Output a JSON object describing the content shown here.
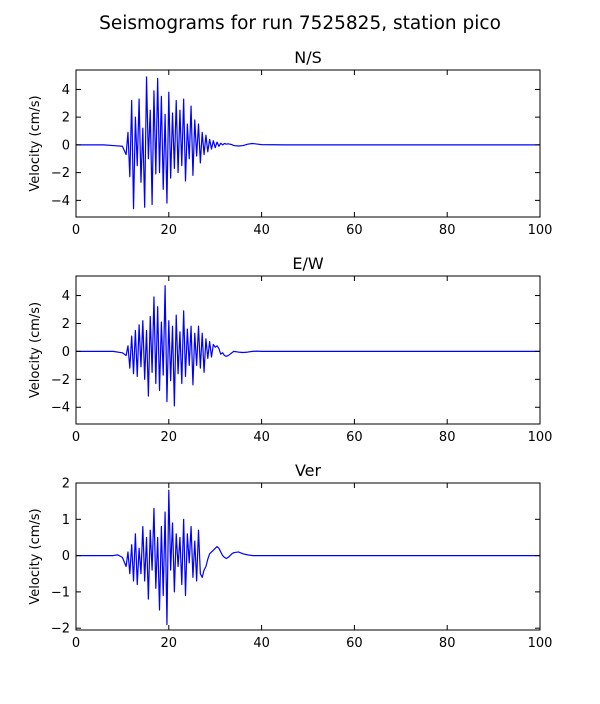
{
  "figure": {
    "title": "Seismograms for run 7525825, station pico"
  },
  "chart_data": [
    {
      "type": "line",
      "title": "N/S",
      "xlabel": "",
      "ylabel": "Velocity (cm/s)",
      "xlim": [
        0,
        100
      ],
      "ylim": [
        -5.2,
        5.4
      ],
      "xticks": [
        0,
        20,
        40,
        60,
        80,
        100
      ],
      "yticks": [
        -4,
        -2,
        0,
        2,
        4
      ],
      "grid": false,
      "color": "#0000ff",
      "x": [
        0,
        2,
        4,
        6,
        8,
        10,
        10.8,
        11.2,
        11.6,
        12.0,
        12.4,
        12.8,
        13.2,
        13.6,
        14.0,
        14.4,
        14.8,
        15.2,
        15.6,
        16.0,
        16.4,
        16.8,
        17.2,
        17.6,
        18.0,
        18.4,
        18.8,
        19.2,
        19.6,
        20.0,
        20.4,
        20.8,
        21.2,
        21.6,
        22.0,
        22.4,
        22.8,
        23.2,
        23.6,
        24.0,
        24.4,
        24.8,
        25.2,
        25.6,
        26.0,
        26.4,
        26.8,
        27.2,
        27.6,
        28.0,
        28.4,
        28.8,
        29.2,
        29.6,
        30.0,
        30.4,
        30.8,
        31.2,
        31.6,
        32.0,
        32.4,
        32.8,
        33.2,
        33.6,
        34,
        35,
        36,
        37,
        38,
        39,
        40,
        45,
        50,
        60,
        70,
        80,
        90,
        100
      ],
      "y": [
        0,
        0,
        0,
        0,
        -0.05,
        -0.1,
        -0.7,
        0.9,
        -2.3,
        3.2,
        -4.6,
        2.0,
        -1.5,
        3.3,
        -2.7,
        1.2,
        -4.5,
        4.9,
        -1.0,
        2.5,
        -4.3,
        3.9,
        -2.1,
        4.8,
        -2.0,
        3.5,
        -3.2,
        2.2,
        -4.2,
        3.8,
        -2.4,
        2.3,
        -1.7,
        3.2,
        -2.0,
        2.5,
        -1.5,
        3.3,
        -2.6,
        1.5,
        -1.0,
        2.8,
        -2.2,
        1.8,
        -0.8,
        1.5,
        -1.3,
        0.9,
        -0.7,
        0.7,
        -0.5,
        0.4,
        -0.3,
        0.3,
        -0.2,
        0.2,
        -0.1,
        0.12,
        0,
        0.1,
        0.05,
        0.08,
        0.05,
        0.02,
        -0.05,
        -0.08,
        -0.05,
        0.05,
        0.1,
        0.06,
        0.02,
        0,
        0,
        0,
        0,
        0,
        0,
        0
      ]
    },
    {
      "type": "line",
      "title": "E/W",
      "xlabel": "",
      "ylabel": "Velocity (cm/s)",
      "xlim": [
        0,
        100
      ],
      "ylim": [
        -5.2,
        5.4
      ],
      "xticks": [
        0,
        20,
        40,
        60,
        80,
        100
      ],
      "yticks": [
        -4,
        -2,
        0,
        2,
        4
      ],
      "grid": false,
      "color": "#0000ff",
      "x": [
        0,
        2,
        4,
        6,
        8,
        10,
        10.8,
        11.2,
        11.6,
        12.0,
        12.4,
        12.8,
        13.2,
        13.6,
        14.0,
        14.4,
        14.8,
        15.2,
        15.6,
        16.0,
        16.4,
        16.8,
        17.2,
        17.6,
        18.0,
        18.4,
        18.8,
        19.2,
        19.6,
        20.0,
        20.4,
        20.8,
        21.2,
        21.6,
        22.0,
        22.4,
        22.8,
        23.2,
        23.6,
        24.0,
        24.4,
        24.8,
        25.2,
        25.6,
        26.0,
        26.4,
        26.8,
        27.2,
        27.6,
        28.0,
        28.4,
        28.8,
        29.2,
        29.6,
        30.0,
        30.4,
        30.8,
        31.2,
        31.6,
        32.0,
        32.4,
        32.8,
        33.2,
        33.6,
        34,
        35,
        36,
        37,
        38,
        39,
        40,
        45,
        50,
        60,
        70,
        80,
        90,
        100
      ],
      "y": [
        0,
        0,
        0,
        0,
        0,
        -0.1,
        -0.3,
        0.4,
        -1.2,
        1.1,
        -1.6,
        1.5,
        -1.8,
        1.9,
        -1.1,
        2.2,
        -2.0,
        1.5,
        -3.2,
        2.5,
        -1.5,
        3.9,
        -2.3,
        3.2,
        -2.8,
        2.1,
        -1.7,
        4.7,
        -3.6,
        2.2,
        -2.1,
        1.8,
        -3.9,
        2.6,
        -1.6,
        1.4,
        -2.3,
        2.9,
        -1.8,
        1.6,
        -1.0,
        1.8,
        -2.4,
        1.3,
        -1.0,
        1.8,
        -1.2,
        1.3,
        -1.5,
        0.9,
        -0.5,
        0.7,
        -0.4,
        0.5,
        0.3,
        0.4,
        0.2,
        -0.2,
        -0.1,
        -0.3,
        -0.35,
        -0.3,
        -0.2,
        -0.1,
        0,
        -0.05,
        -0.08,
        -0.05,
        0,
        0.02,
        0,
        0,
        0,
        0,
        0,
        0,
        0,
        0
      ]
    },
    {
      "type": "line",
      "title": "Ver",
      "xlabel": "",
      "ylabel": "Velocity (cm/s)",
      "xlim": [
        0,
        100
      ],
      "ylim": [
        -2.05,
        2.0
      ],
      "xticks": [
        0,
        20,
        40,
        60,
        80,
        100
      ],
      "yticks": [
        -2,
        -1,
        0,
        1,
        2
      ],
      "grid": false,
      "color": "#0000ff",
      "x": [
        0,
        2,
        4,
        6,
        8,
        9,
        10,
        10.8,
        11.2,
        11.6,
        12.0,
        12.4,
        12.8,
        13.2,
        13.6,
        14.0,
        14.4,
        14.8,
        15.2,
        15.6,
        16.0,
        16.4,
        16.8,
        17.2,
        17.6,
        18.0,
        18.4,
        18.8,
        19.2,
        19.6,
        20.0,
        20.4,
        20.8,
        21.2,
        21.6,
        22.0,
        22.4,
        22.8,
        23.2,
        23.6,
        24.0,
        24.4,
        24.8,
        25.2,
        25.6,
        26.0,
        26.4,
        26.8,
        27.2,
        27.6,
        28.0,
        28.4,
        28.8,
        29.2,
        29.6,
        30.0,
        30.4,
        30.8,
        31.2,
        31.6,
        32.0,
        32.4,
        32.8,
        33.2,
        33.6,
        34,
        35,
        36,
        37,
        38,
        39,
        40,
        45,
        50,
        60,
        70,
        80,
        90,
        100
      ],
      "y": [
        0,
        0,
        0,
        0,
        0,
        0.02,
        -0.05,
        -0.3,
        0.1,
        -0.5,
        0.3,
        -0.7,
        0.6,
        -0.8,
        0.2,
        -0.5,
        0.8,
        -0.7,
        0.5,
        -1.2,
        0.7,
        -0.4,
        1.3,
        -0.9,
        0.5,
        -1.5,
        0.8,
        -1.1,
        1.2,
        -1.9,
        1.8,
        -0.4,
        0.9,
        -1.0,
        0.6,
        -0.3,
        0.5,
        -0.8,
        1.0,
        -1.1,
        0.6,
        -0.2,
        0.8,
        -0.6,
        0.4,
        -0.7,
        0.7,
        -0.5,
        -0.6,
        -0.4,
        -0.3,
        -0.1,
        0.05,
        0.1,
        0.15,
        0.2,
        0.25,
        0.2,
        0.1,
        0,
        -0.05,
        -0.08,
        -0.05,
        0,
        0.05,
        0.08,
        0.1,
        0.05,
        0.02,
        0,
        0,
        0,
        0,
        0,
        0,
        0,
        0,
        0,
        0
      ]
    }
  ]
}
